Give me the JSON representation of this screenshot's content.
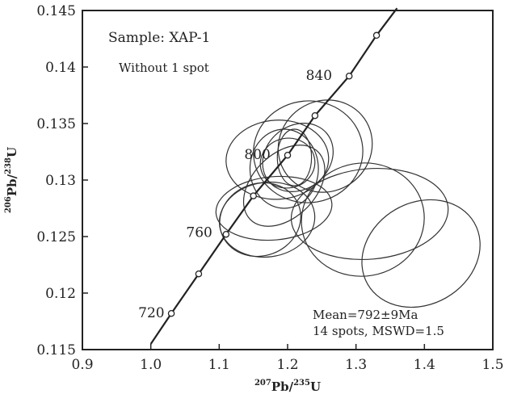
{
  "chart_data": {
    "type": "scatter",
    "title": "",
    "xlabel": "207Pb/235U",
    "ylabel": "206Pb/238U",
    "xlim": [
      0.9,
      1.5
    ],
    "ylim": [
      0.115,
      0.145
    ],
    "xticks": [
      0.9,
      1.0,
      1.1,
      1.2,
      1.3,
      1.4,
      1.5
    ],
    "xtick_labels": [
      "0.9",
      "1.0",
      "1.1",
      "1.2",
      "1.3",
      "1.4",
      "1.5"
    ],
    "yticks": [
      0.115,
      0.12,
      0.125,
      0.13,
      0.135,
      0.14,
      0.145
    ],
    "ytick_labels": [
      "0.115",
      "0.12",
      "0.125",
      "0.13",
      "0.135",
      "0.14",
      "0.145"
    ],
    "grid": false,
    "concordia": {
      "points": [
        {
          "x": 1.0,
          "y": 0.1155
        },
        {
          "x": 1.03,
          "y": 0.1182
        },
        {
          "x": 1.07,
          "y": 0.1217
        },
        {
          "x": 1.11,
          "y": 0.1252
        },
        {
          "x": 1.15,
          "y": 0.1286
        },
        {
          "x": 1.2,
          "y": 0.1322
        },
        {
          "x": 1.24,
          "y": 0.1357
        },
        {
          "x": 1.29,
          "y": 0.1392
        },
        {
          "x": 1.33,
          "y": 0.1428
        },
        {
          "x": 1.36,
          "y": 0.1452
        }
      ],
      "markers": [
        {
          "x": 1.03,
          "y": 0.1182
        },
        {
          "x": 1.07,
          "y": 0.1217
        },
        {
          "x": 1.11,
          "y": 0.1252
        },
        {
          "x": 1.15,
          "y": 0.1286
        },
        {
          "x": 1.2,
          "y": 0.1322
        },
        {
          "x": 1.24,
          "y": 0.1357
        },
        {
          "x": 1.29,
          "y": 0.1392
        },
        {
          "x": 1.33,
          "y": 0.1428
        }
      ],
      "age_labels": [
        {
          "text": "720",
          "x": 1.02,
          "y": 0.1183
        },
        {
          "text": "760",
          "x": 1.09,
          "y": 0.1254
        },
        {
          "text": "800",
          "x": 1.175,
          "y": 0.1323
        },
        {
          "text": "840",
          "x": 1.265,
          "y": 0.1393
        }
      ]
    },
    "error_ellipses": [
      {
        "cx": 1.185,
        "cy": 0.1318,
        "rx": 0.075,
        "ry": 0.0035,
        "angle": -3
      },
      {
        "cx": 1.23,
        "cy": 0.1325,
        "rx": 0.08,
        "ry": 0.0045,
        "angle": -5
      },
      {
        "cx": 1.255,
        "cy": 0.133,
        "rx": 0.07,
        "ry": 0.004,
        "angle": -35
      },
      {
        "cx": 1.215,
        "cy": 0.132,
        "rx": 0.055,
        "ry": 0.0028,
        "angle": -40
      },
      {
        "cx": 1.2,
        "cy": 0.1315,
        "rx": 0.04,
        "ry": 0.0022,
        "angle": -10
      },
      {
        "cx": 1.195,
        "cy": 0.131,
        "rx": 0.05,
        "ry": 0.0035,
        "angle": 0
      },
      {
        "cx": 1.21,
        "cy": 0.132,
        "rx": 0.025,
        "ry": 0.0025,
        "angle": 0
      },
      {
        "cx": 1.18,
        "cy": 0.1275,
        "rx": 0.085,
        "ry": 0.0028,
        "angle": -5
      },
      {
        "cx": 1.17,
        "cy": 0.1265,
        "rx": 0.07,
        "ry": 0.0033,
        "angle": -8
      },
      {
        "cx": 1.16,
        "cy": 0.1265,
        "rx": 0.06,
        "ry": 0.0032,
        "angle": -20
      },
      {
        "cx": 1.195,
        "cy": 0.1295,
        "rx": 0.07,
        "ry": 0.0028,
        "angle": -45
      },
      {
        "cx": 1.32,
        "cy": 0.127,
        "rx": 0.115,
        "ry": 0.004,
        "angle": -5
      },
      {
        "cx": 1.31,
        "cy": 0.1265,
        "rx": 0.09,
        "ry": 0.005,
        "angle": -10
      },
      {
        "cx": 1.395,
        "cy": 0.1235,
        "rx": 0.09,
        "ry": 0.0045,
        "angle": -30
      }
    ],
    "annotations": {
      "sample": "Sample: XAP-1",
      "without": "Without 1 spot",
      "mean": "Mean=792±9Ma",
      "spots": "14 spots, MSWD=1.5"
    }
  }
}
